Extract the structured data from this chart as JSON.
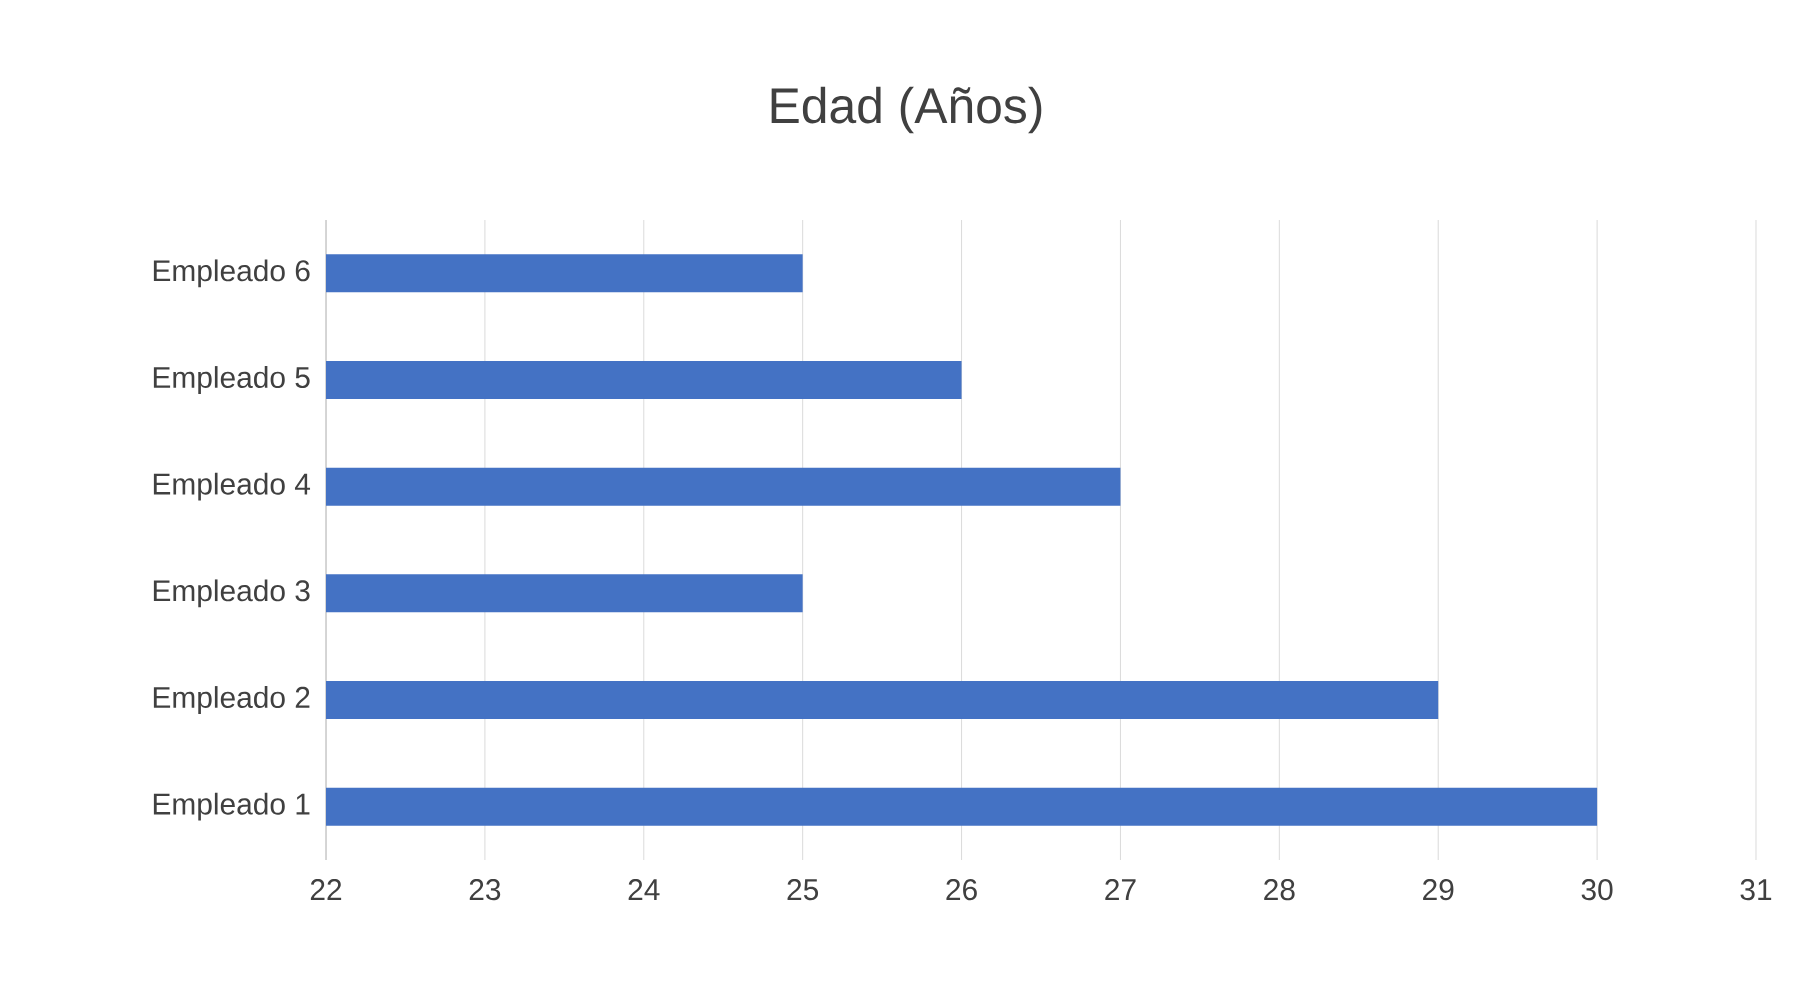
{
  "chart_data": {
    "type": "bar",
    "orientation": "horizontal",
    "title": "Edad (Años)",
    "categories": [
      "Empleado 6",
      "Empleado 5",
      "Empleado 4",
      "Empleado 3",
      "Empleado 2",
      "Empleado 1"
    ],
    "values": [
      25,
      26,
      27,
      25,
      29,
      30
    ],
    "color": "#4472c4",
    "xlim": [
      22,
      31
    ],
    "xticks": [
      22,
      23,
      24,
      25,
      26,
      27,
      28,
      29,
      30,
      31
    ],
    "grid": "x"
  }
}
